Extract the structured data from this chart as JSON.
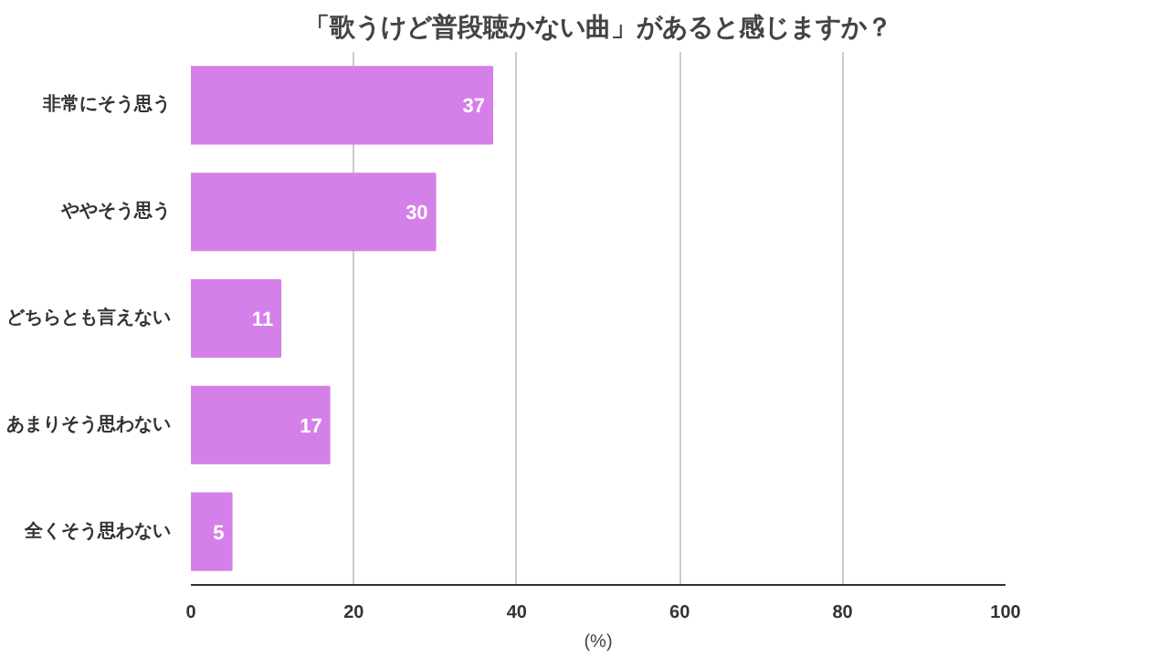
{
  "chart_data": {
    "type": "bar",
    "orientation": "horizontal",
    "title": "「歌うけど普段聴かない曲」があると感じますか？",
    "xlabel": "(%)",
    "categories": [
      "非常にそう思う",
      "ややそう思う",
      "どちらとも言えない",
      "あまりそう思わない",
      "全くそう思わない"
    ],
    "values": [
      37,
      30,
      11,
      17,
      5
    ],
    "color": "#d580e8",
    "xlim": [
      0,
      100
    ],
    "xticks": [
      0,
      20,
      40,
      60,
      80,
      100
    ],
    "grid": "x",
    "data_labels": true
  }
}
